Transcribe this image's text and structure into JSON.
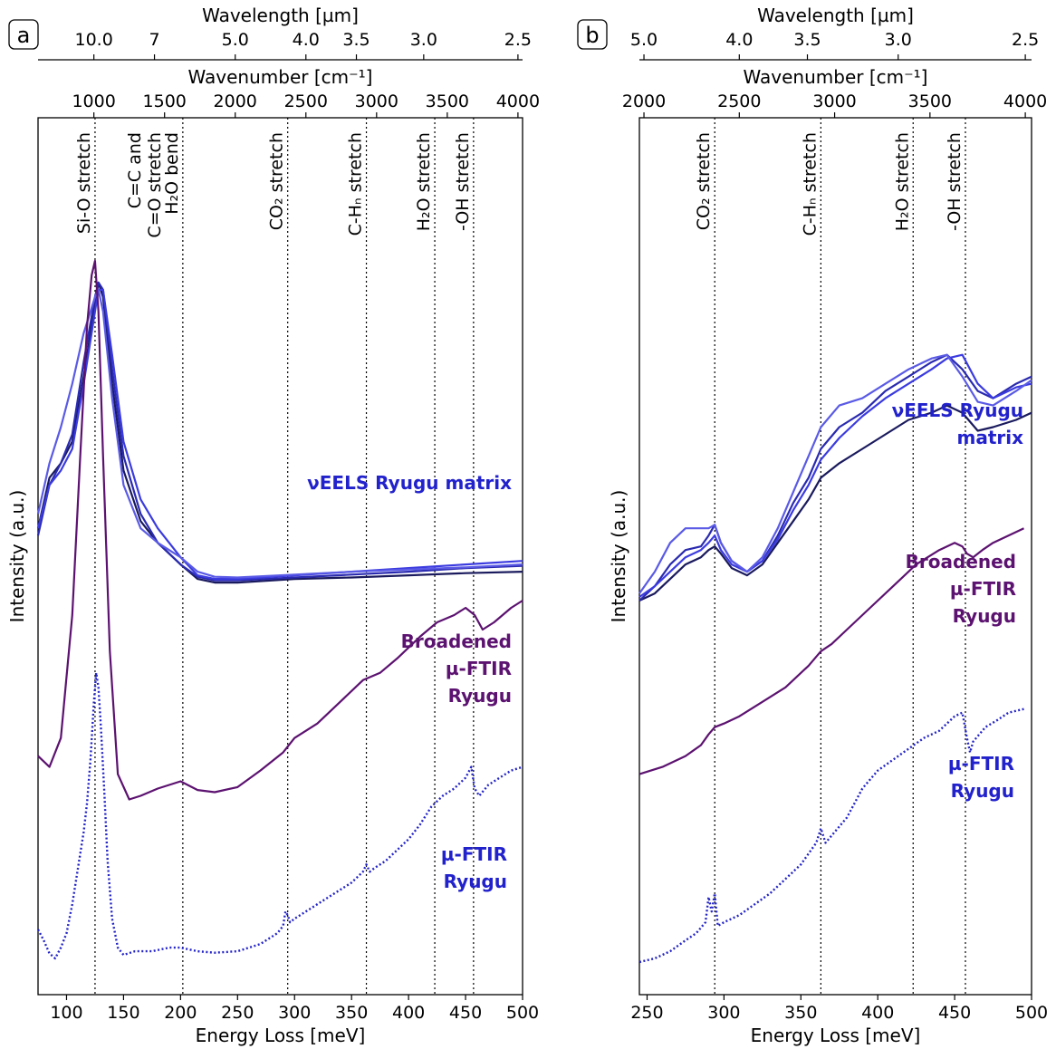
{
  "figure": {
    "y_axis_label": "Intensity (a.u.)",
    "top_axis_label": "Wavenumber [cm⁻¹]",
    "wavelength_axis_label": "Wavelength [µm]"
  },
  "colors": {
    "veels_lines": [
      "#1a1a5e",
      "#2a2ab0",
      "#3b3be0",
      "#5a5ae6"
    ],
    "broadened": "#5c1270",
    "ftir": "#2424c8",
    "label_blue": "#2222cc",
    "label_purple": "#5c1270"
  },
  "chart_data": [
    {
      "panel_label": "a",
      "type": "line",
      "xlabel": "Energy Loss [meV]",
      "ylabel": "Intensity (a.u.)",
      "xlim": [
        75,
        500
      ],
      "x_ticks": [
        100,
        150,
        200,
        250,
        300,
        350,
        400,
        450,
        500
      ],
      "wavenumber_ticks": [
        1000,
        1500,
        2000,
        2500,
        3000,
        3500,
        4000
      ],
      "wavelength_ticks": [
        "10.0",
        "7",
        "5.0",
        "4.0",
        "3.5",
        "3.0",
        "2.5"
      ],
      "wavelength_values": [
        10.0,
        7,
        5.0,
        4.0,
        3.5,
        3.0,
        2.5
      ],
      "annotations": [
        {
          "x": 125,
          "lines": [
            "Si-O stretch"
          ]
        },
        {
          "x": 187,
          "lines": [
            "C=C and",
            "C=O stretch"
          ]
        },
        {
          "x": 202,
          "lines": [
            "H₂O bend"
          ]
        },
        {
          "x": 294,
          "lines": [
            "CO₂ stretch"
          ]
        },
        {
          "x": 363,
          "lines": [
            "C-Hₙ stretch"
          ]
        },
        {
          "x": 423,
          "lines": [
            "H₂O stretch"
          ]
        },
        {
          "x": 457,
          "lines": [
            "-OH stretch"
          ]
        }
      ],
      "vlines": [
        125,
        202,
        294,
        363,
        423,
        457
      ],
      "series_labels": [
        {
          "lines": [
            "νEELS Ryugu matrix"
          ],
          "color": "#2222cc"
        },
        {
          "lines": [
            "Broadened",
            "µ-FTIR",
            "Ryugu"
          ],
          "color": "#5c1270"
        },
        {
          "lines": [
            "µ-FTIR",
            "Ryugu"
          ],
          "color": "#2222cc"
        }
      ],
      "series": [
        {
          "group": "veels",
          "x": [
            75,
            85,
            95,
            105,
            115,
            125,
            128,
            132,
            140,
            150,
            165,
            180,
            200,
            215,
            230,
            250,
            300,
            350,
            400,
            450,
            500
          ],
          "y": [
            0.62,
            0.69,
            0.71,
            0.74,
            0.83,
            0.93,
            0.96,
            0.94,
            0.82,
            0.7,
            0.63,
            0.6,
            0.57,
            0.55,
            0.545,
            0.545,
            0.55,
            0.552,
            0.555,
            0.558,
            0.56
          ]
        },
        {
          "group": "veels",
          "x": [
            75,
            85,
            95,
            105,
            115,
            125,
            128,
            132,
            140,
            150,
            165,
            180,
            200,
            215,
            230,
            250,
            300,
            350,
            400,
            450,
            500
          ],
          "y": [
            0.61,
            0.68,
            0.71,
            0.75,
            0.85,
            0.94,
            0.96,
            0.95,
            0.84,
            0.72,
            0.64,
            0.6,
            0.57,
            0.553,
            0.548,
            0.548,
            0.552,
            0.556,
            0.56,
            0.565,
            0.568
          ]
        },
        {
          "group": "veels",
          "x": [
            75,
            85,
            95,
            105,
            115,
            125,
            128,
            132,
            140,
            150,
            165,
            180,
            200,
            215,
            230,
            250,
            300,
            350,
            400,
            450,
            500
          ],
          "y": [
            0.62,
            0.68,
            0.7,
            0.73,
            0.82,
            0.92,
            0.95,
            0.95,
            0.86,
            0.74,
            0.66,
            0.62,
            0.58,
            0.555,
            0.55,
            0.55,
            0.555,
            0.56,
            0.565,
            0.57,
            0.575
          ]
        },
        {
          "group": "veels",
          "x": [
            75,
            85,
            95,
            105,
            115,
            125,
            128,
            132,
            140,
            150,
            165,
            180,
            200,
            215,
            230,
            250,
            300,
            350,
            400,
            450,
            500
          ],
          "y": [
            0.64,
            0.71,
            0.76,
            0.82,
            0.89,
            0.94,
            0.95,
            0.92,
            0.8,
            0.68,
            0.62,
            0.6,
            0.58,
            0.56,
            0.553,
            0.552,
            0.556,
            0.56,
            0.563,
            0.566,
            0.57
          ]
        },
        {
          "group": "broadened",
          "x": [
            75,
            85,
            95,
            105,
            112,
            118,
            122,
            125,
            128,
            132,
            138,
            145,
            155,
            165,
            180,
            200,
            215,
            230,
            250,
            270,
            290,
            300,
            320,
            340,
            360,
            375,
            390,
            410,
            425,
            440,
            450,
            458,
            465,
            475,
            490,
            500
          ],
          "y": [
            0.305,
            0.29,
            0.33,
            0.5,
            0.72,
            0.9,
            0.97,
            0.99,
            0.92,
            0.72,
            0.45,
            0.28,
            0.245,
            0.25,
            0.26,
            0.27,
            0.258,
            0.255,
            0.262,
            0.285,
            0.31,
            0.33,
            0.35,
            0.38,
            0.41,
            0.42,
            0.44,
            0.47,
            0.49,
            0.5,
            0.51,
            0.5,
            0.48,
            0.49,
            0.51,
            0.52
          ]
        },
        {
          "group": "ftir",
          "x": [
            75,
            80,
            85,
            90,
            95,
            100,
            105,
            110,
            115,
            118,
            121,
            124,
            126,
            128,
            130,
            133,
            136,
            140,
            145,
            150,
            160,
            175,
            190,
            200,
            215,
            230,
            250,
            270,
            285,
            290,
            292,
            294,
            296,
            300,
            310,
            330,
            350,
            360,
            363,
            366,
            370,
            380,
            400,
            410,
            420,
            430,
            440,
            450,
            455,
            458,
            462,
            470,
            480,
            490,
            500
          ],
          "y": [
            0.065,
            0.05,
            0.032,
            0.025,
            0.04,
            0.06,
            0.1,
            0.15,
            0.2,
            0.24,
            0.3,
            0.38,
            0.42,
            0.4,
            0.35,
            0.26,
            0.16,
            0.08,
            0.04,
            0.03,
            0.035,
            0.035,
            0.04,
            0.04,
            0.035,
            0.033,
            0.035,
            0.045,
            0.06,
            0.07,
            0.09,
            0.085,
            0.075,
            0.08,
            0.09,
            0.11,
            0.13,
            0.145,
            0.155,
            0.145,
            0.15,
            0.16,
            0.19,
            0.21,
            0.235,
            0.25,
            0.26,
            0.275,
            0.29,
            0.26,
            0.25,
            0.265,
            0.275,
            0.285,
            0.29
          ]
        }
      ]
    },
    {
      "panel_label": "b",
      "type": "line",
      "xlabel": "Energy Loss [meV]",
      "ylabel": "Intensity (a.u.)",
      "xlim": [
        245,
        500
      ],
      "x_ticks": [
        250,
        300,
        350,
        400,
        450,
        500
      ],
      "wavenumber_ticks": [
        2000,
        2500,
        3000,
        3500,
        4000
      ],
      "wavelength_ticks": [
        "5.0",
        "4.0",
        "3.5",
        "3.0",
        "2.5"
      ],
      "wavelength_values": [
        5.0,
        4.0,
        3.5,
        3.0,
        2.5
      ],
      "annotations": [
        {
          "x": 294,
          "lines": [
            "CO₂ stretch"
          ]
        },
        {
          "x": 363,
          "lines": [
            "C-Hₙ stretch"
          ]
        },
        {
          "x": 423,
          "lines": [
            "H₂O stretch"
          ]
        },
        {
          "x": 457,
          "lines": [
            "-OH stretch"
          ]
        }
      ],
      "vlines": [
        294,
        363,
        423,
        457
      ],
      "series_labels": [
        {
          "lines": [
            "νEELS Ryugu",
            "matrix"
          ],
          "color": "#2222cc"
        },
        {
          "lines": [
            "Broadened",
            "µ-FTIR",
            "Ryugu"
          ],
          "color": "#5c1270"
        },
        {
          "lines": [
            "µ-FTIR",
            "Ryugu"
          ],
          "color": "#2222cc"
        }
      ],
      "series": [
        {
          "group": "veels",
          "x": [
            245,
            255,
            265,
            275,
            285,
            290,
            294,
            298,
            305,
            315,
            325,
            335,
            345,
            355,
            363,
            375,
            390,
            405,
            420,
            435,
            445,
            455,
            465,
            475,
            490,
            500
          ],
          "y": [
            0.52,
            0.53,
            0.55,
            0.57,
            0.58,
            0.59,
            0.595,
            0.585,
            0.565,
            0.555,
            0.57,
            0.6,
            0.63,
            0.66,
            0.69,
            0.71,
            0.73,
            0.75,
            0.77,
            0.78,
            0.79,
            0.78,
            0.755,
            0.76,
            0.77,
            0.78
          ]
        },
        {
          "group": "veels",
          "x": [
            245,
            255,
            265,
            275,
            285,
            290,
            294,
            298,
            305,
            315,
            325,
            335,
            345,
            355,
            363,
            375,
            390,
            405,
            420,
            435,
            445,
            455,
            465,
            475,
            490,
            500
          ],
          "y": [
            0.52,
            0.54,
            0.57,
            0.59,
            0.595,
            0.61,
            0.625,
            0.6,
            0.575,
            0.56,
            0.575,
            0.61,
            0.655,
            0.69,
            0.73,
            0.76,
            0.78,
            0.81,
            0.83,
            0.85,
            0.86,
            0.84,
            0.81,
            0.8,
            0.82,
            0.83
          ]
        },
        {
          "group": "veels",
          "x": [
            245,
            255,
            265,
            275,
            285,
            290,
            294,
            298,
            305,
            315,
            325,
            335,
            345,
            355,
            363,
            375,
            390,
            405,
            420,
            435,
            445,
            455,
            465,
            475,
            490,
            500
          ],
          "y": [
            0.525,
            0.54,
            0.56,
            0.58,
            0.59,
            0.6,
            0.61,
            0.59,
            0.57,
            0.56,
            0.575,
            0.605,
            0.645,
            0.68,
            0.715,
            0.745,
            0.775,
            0.8,
            0.82,
            0.84,
            0.855,
            0.86,
            0.82,
            0.8,
            0.815,
            0.82
          ]
        },
        {
          "group": "veels",
          "x": [
            245,
            255,
            265,
            275,
            285,
            290,
            294,
            298,
            305,
            315,
            325,
            335,
            345,
            355,
            363,
            375,
            390,
            405,
            420,
            435,
            445,
            455,
            465,
            475,
            490,
            500
          ],
          "y": [
            0.53,
            0.56,
            0.6,
            0.62,
            0.62,
            0.62,
            0.625,
            0.6,
            0.575,
            0.56,
            0.58,
            0.62,
            0.67,
            0.72,
            0.76,
            0.79,
            0.8,
            0.82,
            0.84,
            0.855,
            0.86,
            0.83,
            0.795,
            0.79,
            0.81,
            0.825
          ]
        },
        {
          "group": "broadened",
          "x": [
            245,
            260,
            275,
            285,
            290,
            294,
            300,
            310,
            325,
            340,
            355,
            363,
            370,
            380,
            395,
            410,
            425,
            440,
            450,
            455,
            458,
            462,
            468,
            475,
            485,
            495
          ],
          "y": [
            0.28,
            0.29,
            0.305,
            0.32,
            0.335,
            0.345,
            0.35,
            0.36,
            0.38,
            0.4,
            0.43,
            0.45,
            0.46,
            0.48,
            0.51,
            0.54,
            0.57,
            0.59,
            0.6,
            0.595,
            0.585,
            0.58,
            0.59,
            0.6,
            0.61,
            0.62
          ]
        },
        {
          "group": "ftir",
          "x": [
            245,
            255,
            265,
            275,
            282,
            288,
            290,
            292,
            294,
            296,
            300,
            310,
            320,
            330,
            340,
            350,
            355,
            360,
            363,
            366,
            370,
            380,
            390,
            400,
            410,
            420,
            430,
            440,
            450,
            455,
            458,
            460,
            462,
            466,
            470,
            478,
            485,
            495
          ],
          "y": [
            0.02,
            0.025,
            0.035,
            0.05,
            0.06,
            0.075,
            0.11,
            0.09,
            0.115,
            0.07,
            0.075,
            0.085,
            0.1,
            0.115,
            0.135,
            0.155,
            0.17,
            0.185,
            0.205,
            0.185,
            0.195,
            0.22,
            0.26,
            0.285,
            0.3,
            0.315,
            0.33,
            0.34,
            0.36,
            0.365,
            0.33,
            0.31,
            0.325,
            0.335,
            0.345,
            0.355,
            0.365,
            0.37
          ]
        }
      ]
    }
  ]
}
